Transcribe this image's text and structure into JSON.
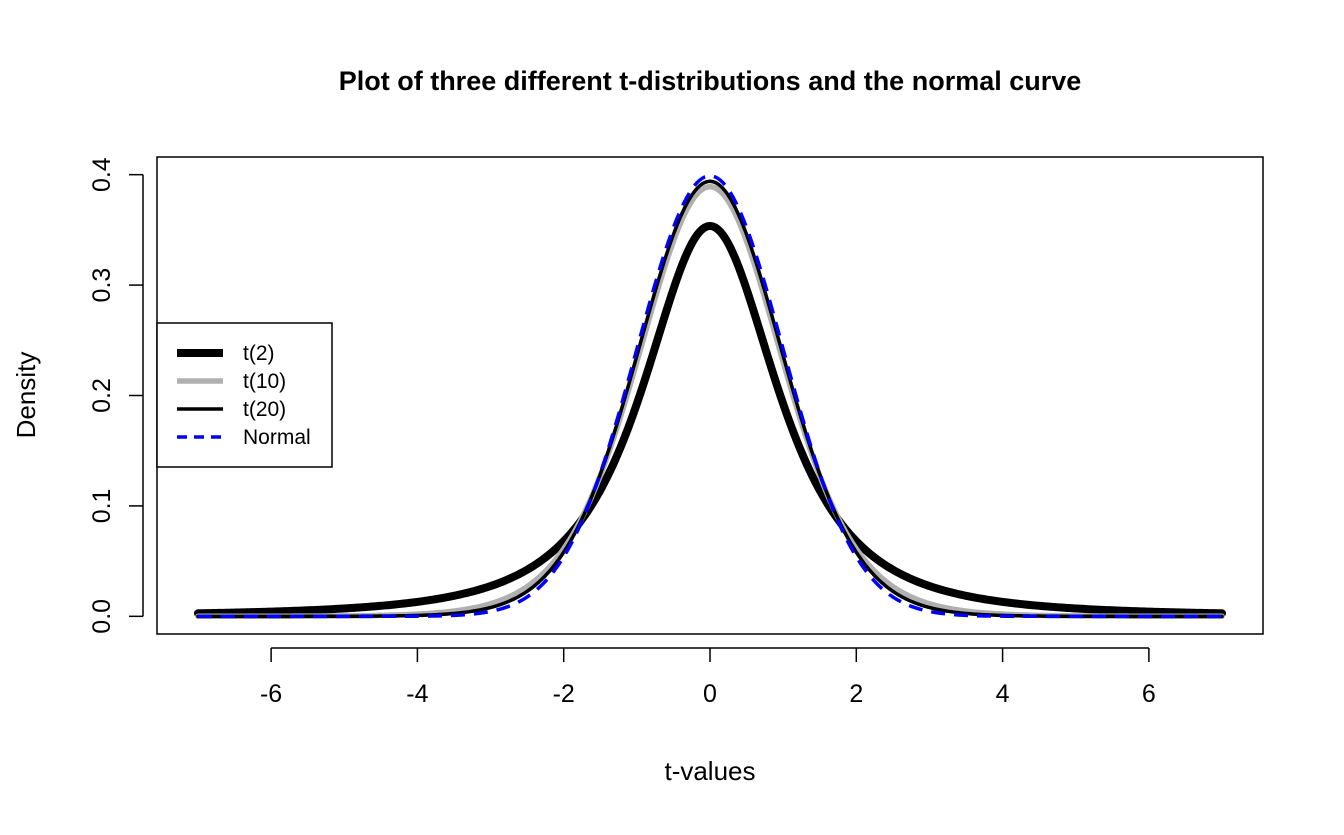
{
  "chart_data": {
    "type": "line",
    "title": "Plot of three different t-distributions and the normal curve",
    "xlabel": "t-values",
    "ylabel": "Density",
    "xlim": [
      -7.56,
      7.56
    ],
    "ylim": [
      -0.016,
      0.416
    ],
    "x_ticks": [
      -6,
      -4,
      -2,
      0,
      2,
      4,
      6
    ],
    "x_tick_labels": [
      "-6",
      "-4",
      "-2",
      "0",
      "2",
      "4",
      "6"
    ],
    "y_ticks": [
      0.0,
      0.1,
      0.2,
      0.3,
      0.4
    ],
    "y_tick_labels": [
      "0.0",
      "0.1",
      "0.2",
      "0.3",
      "0.4"
    ],
    "x_range": [
      -7,
      7
    ],
    "grid": false,
    "legend_position": "left-center",
    "series": [
      {
        "name": "t(2)",
        "dist": "t",
        "df": 2,
        "color": "#000000",
        "style": "solid",
        "weight": "thick",
        "peak": 0.354
      },
      {
        "name": "t(10)",
        "dist": "t",
        "df": 10,
        "color": "#b0b0b0",
        "style": "solid",
        "weight": "medium",
        "peak": 0.389
      },
      {
        "name": "t(20)",
        "dist": "t",
        "df": 20,
        "color": "#000000",
        "style": "solid",
        "weight": "thin",
        "peak": 0.394
      },
      {
        "name": "Normal",
        "dist": "normal",
        "df": null,
        "color": "#0000ff",
        "style": "dashed",
        "weight": "thin",
        "peak": 0.399
      }
    ]
  }
}
